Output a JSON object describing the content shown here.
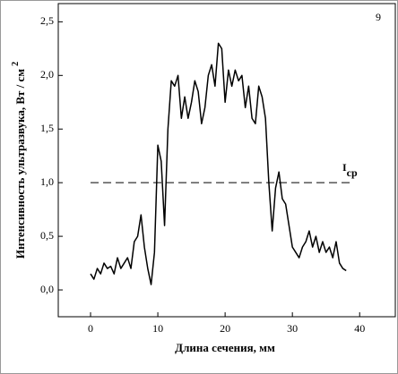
{
  "chart_data": {
    "type": "line",
    "xlabel": "Длина сечения, мм",
    "ylabel": "Интенсивность ультразвука, Вт / см",
    "ylabel_superscript": "2",
    "annotation": "9",
    "reference_line": {
      "y": 1.0,
      "x": [
        0,
        39
      ],
      "label": "I",
      "label_subscript": "cp"
    },
    "x": [
      0,
      0.5,
      1,
      1.5,
      2,
      2.5,
      3,
      3.5,
      4,
      4.5,
      5,
      5.5,
      6,
      6.5,
      7,
      7.5,
      8,
      8.5,
      9,
      9.5,
      10,
      10.5,
      11,
      11.5,
      12,
      12.5,
      13,
      13.5,
      14,
      14.5,
      15,
      15.5,
      16,
      16.5,
      17,
      17.5,
      18,
      18.5,
      19,
      19.5,
      20,
      20.5,
      21,
      21.5,
      22,
      22.5,
      23,
      23.5,
      24,
      24.5,
      25,
      25.5,
      26,
      26.5,
      27,
      27.5,
      28,
      28.5,
      29,
      29.5,
      30,
      30.5,
      31,
      31.5,
      32,
      32.5,
      33,
      33.5,
      34,
      34.5,
      35,
      35.5,
      36,
      36.5,
      37,
      37.5,
      38
    ],
    "series": [
      {
        "color": "#000000",
        "values": [
          0.15,
          0.1,
          0.2,
          0.15,
          0.25,
          0.2,
          0.22,
          0.15,
          0.3,
          0.2,
          0.25,
          0.3,
          0.2,
          0.45,
          0.5,
          0.7,
          0.4,
          0.2,
          0.05,
          0.35,
          1.35,
          1.2,
          0.6,
          1.5,
          1.95,
          1.9,
          2.0,
          1.6,
          1.8,
          1.6,
          1.75,
          1.95,
          1.85,
          1.55,
          1.7,
          2.0,
          2.1,
          1.9,
          2.3,
          2.25,
          1.75,
          2.05,
          1.9,
          2.05,
          1.95,
          2.0,
          1.7,
          1.9,
          1.6,
          1.55,
          1.9,
          1.8,
          1.6,
          1.0,
          0.55,
          0.95,
          1.1,
          0.85,
          0.8,
          0.6,
          0.4,
          0.35,
          0.3,
          0.4,
          0.45,
          0.55,
          0.4,
          0.5,
          0.35,
          0.45,
          0.35,
          0.4,
          0.3,
          0.45,
          0.25,
          0.2,
          0.18
        ]
      }
    ],
    "xlim": [
      -4.8,
      45.3
    ],
    "xticks": [
      0,
      10,
      20,
      30,
      40
    ],
    "ylim": [
      -0.25,
      2.67
    ],
    "yticks": [
      {
        "value": 0,
        "label": "0,0"
      },
      {
        "value": 0.5,
        "label": "0,5"
      },
      {
        "value": 1,
        "label": "1,0"
      },
      {
        "value": 1.5,
        "label": "1,5"
      },
      {
        "value": 2,
        "label": "2,0"
      },
      {
        "value": 2.5,
        "label": "2,5"
      }
    ]
  }
}
